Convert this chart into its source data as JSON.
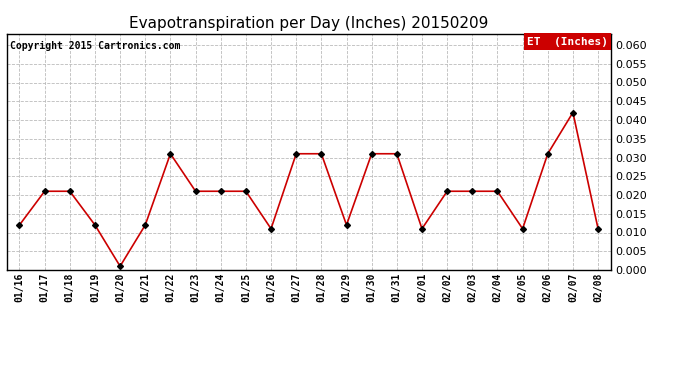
{
  "title": "Evapotranspiration per Day (Inches) 20150209",
  "copyright": "Copyright 2015 Cartronics.com",
  "legend_label": "ET  (Inches)",
  "legend_bg": "#cc0000",
  "legend_text_color": "#ffffff",
  "line_color": "#cc0000",
  "marker_color": "#000000",
  "background_color": "#ffffff",
  "grid_color": "#bbbbbb",
  "dates": [
    "01/16",
    "01/17",
    "01/18",
    "01/19",
    "01/20",
    "01/21",
    "01/22",
    "01/23",
    "01/24",
    "01/25",
    "01/26",
    "01/27",
    "01/28",
    "01/29",
    "01/30",
    "01/31",
    "02/01",
    "02/02",
    "02/03",
    "02/04",
    "02/05",
    "02/06",
    "02/07",
    "02/08"
  ],
  "values": [
    0.012,
    0.021,
    0.021,
    0.012,
    0.001,
    0.012,
    0.031,
    0.021,
    0.021,
    0.021,
    0.011,
    0.031,
    0.031,
    0.012,
    0.031,
    0.031,
    0.011,
    0.021,
    0.021,
    0.021,
    0.011,
    0.031,
    0.042,
    0.011
  ],
  "ylim": [
    0.0,
    0.063
  ],
  "yticks": [
    0.0,
    0.005,
    0.01,
    0.015,
    0.02,
    0.025,
    0.03,
    0.035,
    0.04,
    0.045,
    0.05,
    0.055,
    0.06
  ]
}
